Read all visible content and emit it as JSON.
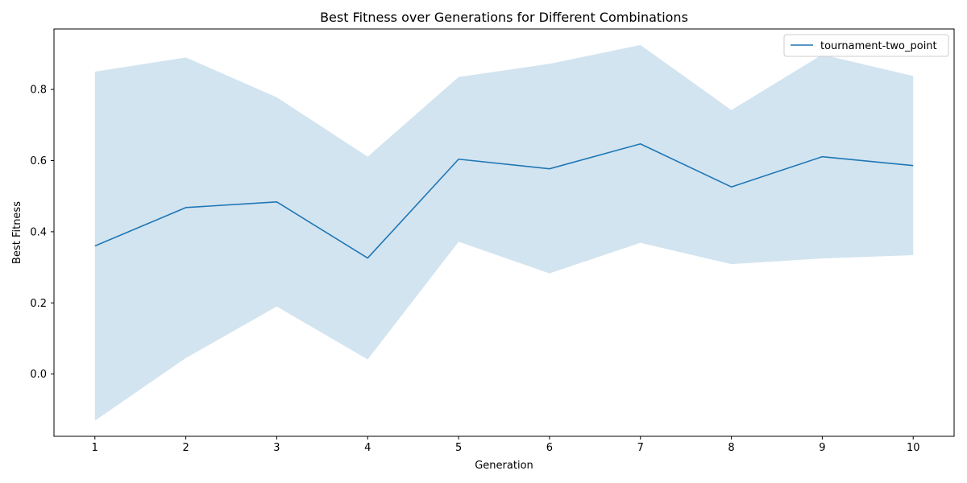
{
  "chart_data": {
    "type": "line",
    "title": "Best Fitness over Generations for Different Combinations",
    "xlabel": "Generation",
    "ylabel": "Best Fitness",
    "x": [
      1,
      2,
      3,
      4,
      5,
      6,
      7,
      8,
      9,
      10
    ],
    "xlim": [
      0.55,
      10.45
    ],
    "ylim": [
      -0.175,
      0.97
    ],
    "yticks": [
      0.0,
      0.2,
      0.4,
      0.6,
      0.8
    ],
    "ytick_labels": [
      "0.0",
      "0.2",
      "0.4",
      "0.6",
      "0.8"
    ],
    "xtick_labels": [
      "1",
      "2",
      "3",
      "4",
      "5",
      "6",
      "7",
      "8",
      "9",
      "10"
    ],
    "grid": false,
    "legend_position": "upper right",
    "series": [
      {
        "name": "tournament-two_point",
        "color": "#1f77b4",
        "band_color": "#1f77b4",
        "values": [
          0.36,
          0.468,
          0.484,
          0.326,
          0.604,
          0.577,
          0.647,
          0.526,
          0.611,
          0.586
        ],
        "upper": [
          0.85,
          0.89,
          0.778,
          0.611,
          0.835,
          0.872,
          0.925,
          0.742,
          0.898,
          0.838
        ],
        "lower": [
          -0.131,
          0.045,
          0.19,
          0.041,
          0.372,
          0.283,
          0.369,
          0.309,
          0.325,
          0.334
        ]
      }
    ]
  }
}
